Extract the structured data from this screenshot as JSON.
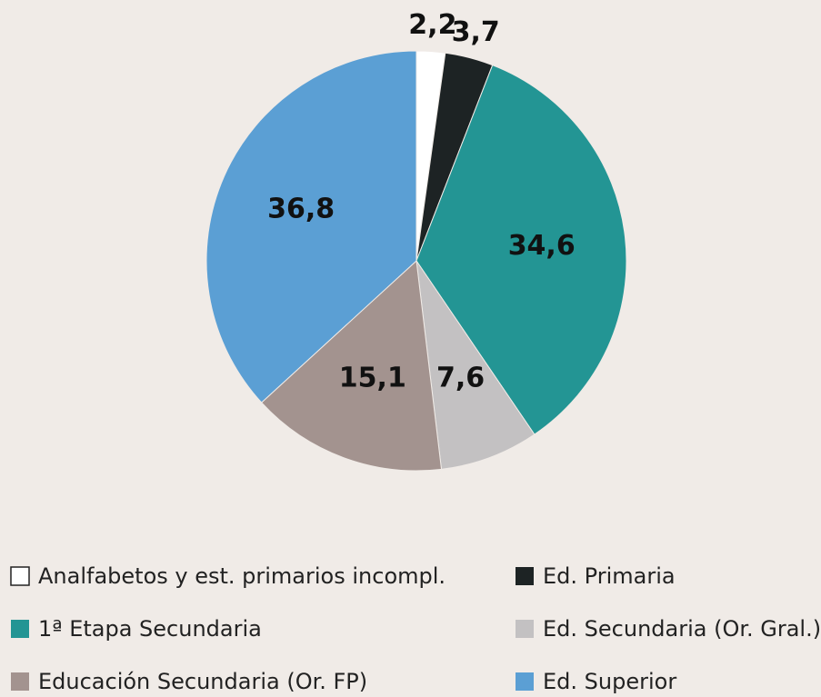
{
  "chart_data": {
    "type": "pie",
    "categories": [
      "Analfabetos y est. primarios incompl.",
      "Ed. Primaria",
      "1ª Etapa Secundaria",
      "Ed. Secundaria (Or. Gral.)",
      "Educación Secundaria (Or. FP)",
      "Ed. Superior"
    ],
    "values": [
      2.2,
      3.7,
      34.6,
      7.6,
      15.1,
      36.8
    ],
    "value_labels": [
      "2,2",
      "3,7",
      "34,6",
      "7,6",
      "15,1",
      "36,8"
    ],
    "colors": [
      "#ffffff",
      "#1d2324",
      "#239594",
      "#c3c1c2",
      "#a3938f",
      "#5b9fd4"
    ]
  }
}
